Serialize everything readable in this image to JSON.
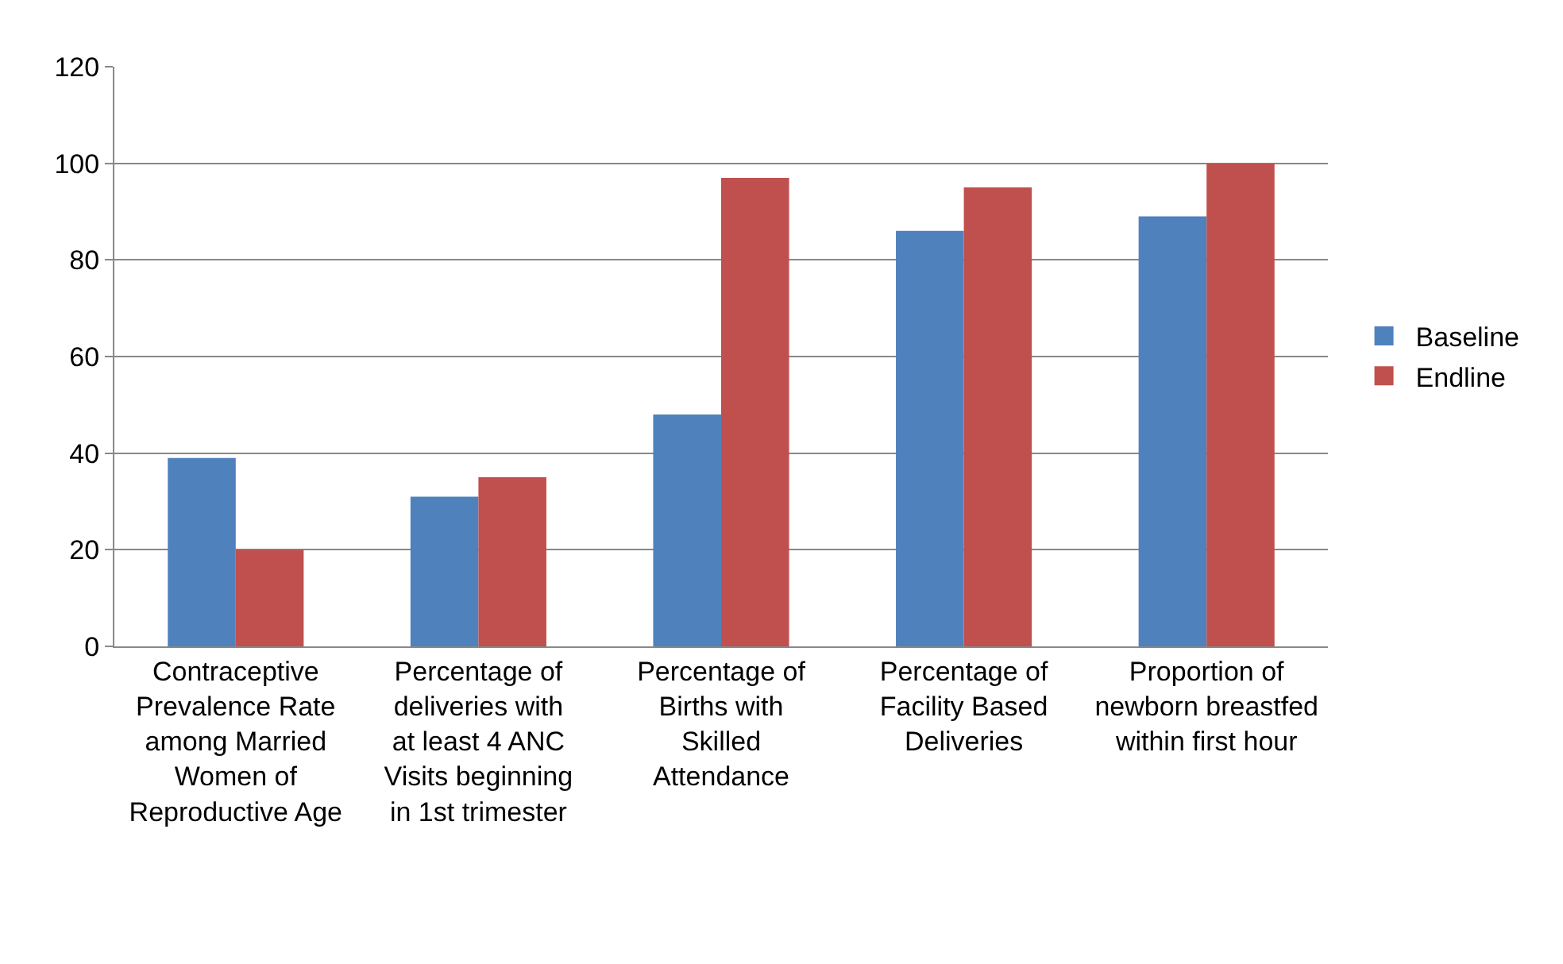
{
  "chart_data": {
    "type": "bar",
    "categories": [
      "Contraceptive Prevalence Rate among Married Women of Reproductive Age",
      "Percentage of deliveries with at least 4 ANC Visits beginning in 1st trimester",
      "Percentage of Births with Skilled Attendance",
      "Percentage of Facility Based Deliveries",
      "Proportion of newborn breastfed within first hour"
    ],
    "series": [
      {
        "name": "Baseline",
        "color": "#4f81bd",
        "values": [
          39,
          31,
          48,
          86,
          89
        ]
      },
      {
        "name": "Endline",
        "color": "#c0504d",
        "values": [
          20,
          35,
          97,
          95,
          100
        ]
      }
    ],
    "ylim": [
      0,
      120
    ],
    "yticks": [
      0,
      20,
      40,
      60,
      80,
      100,
      120
    ],
    "grid": "y",
    "legend": "right"
  }
}
